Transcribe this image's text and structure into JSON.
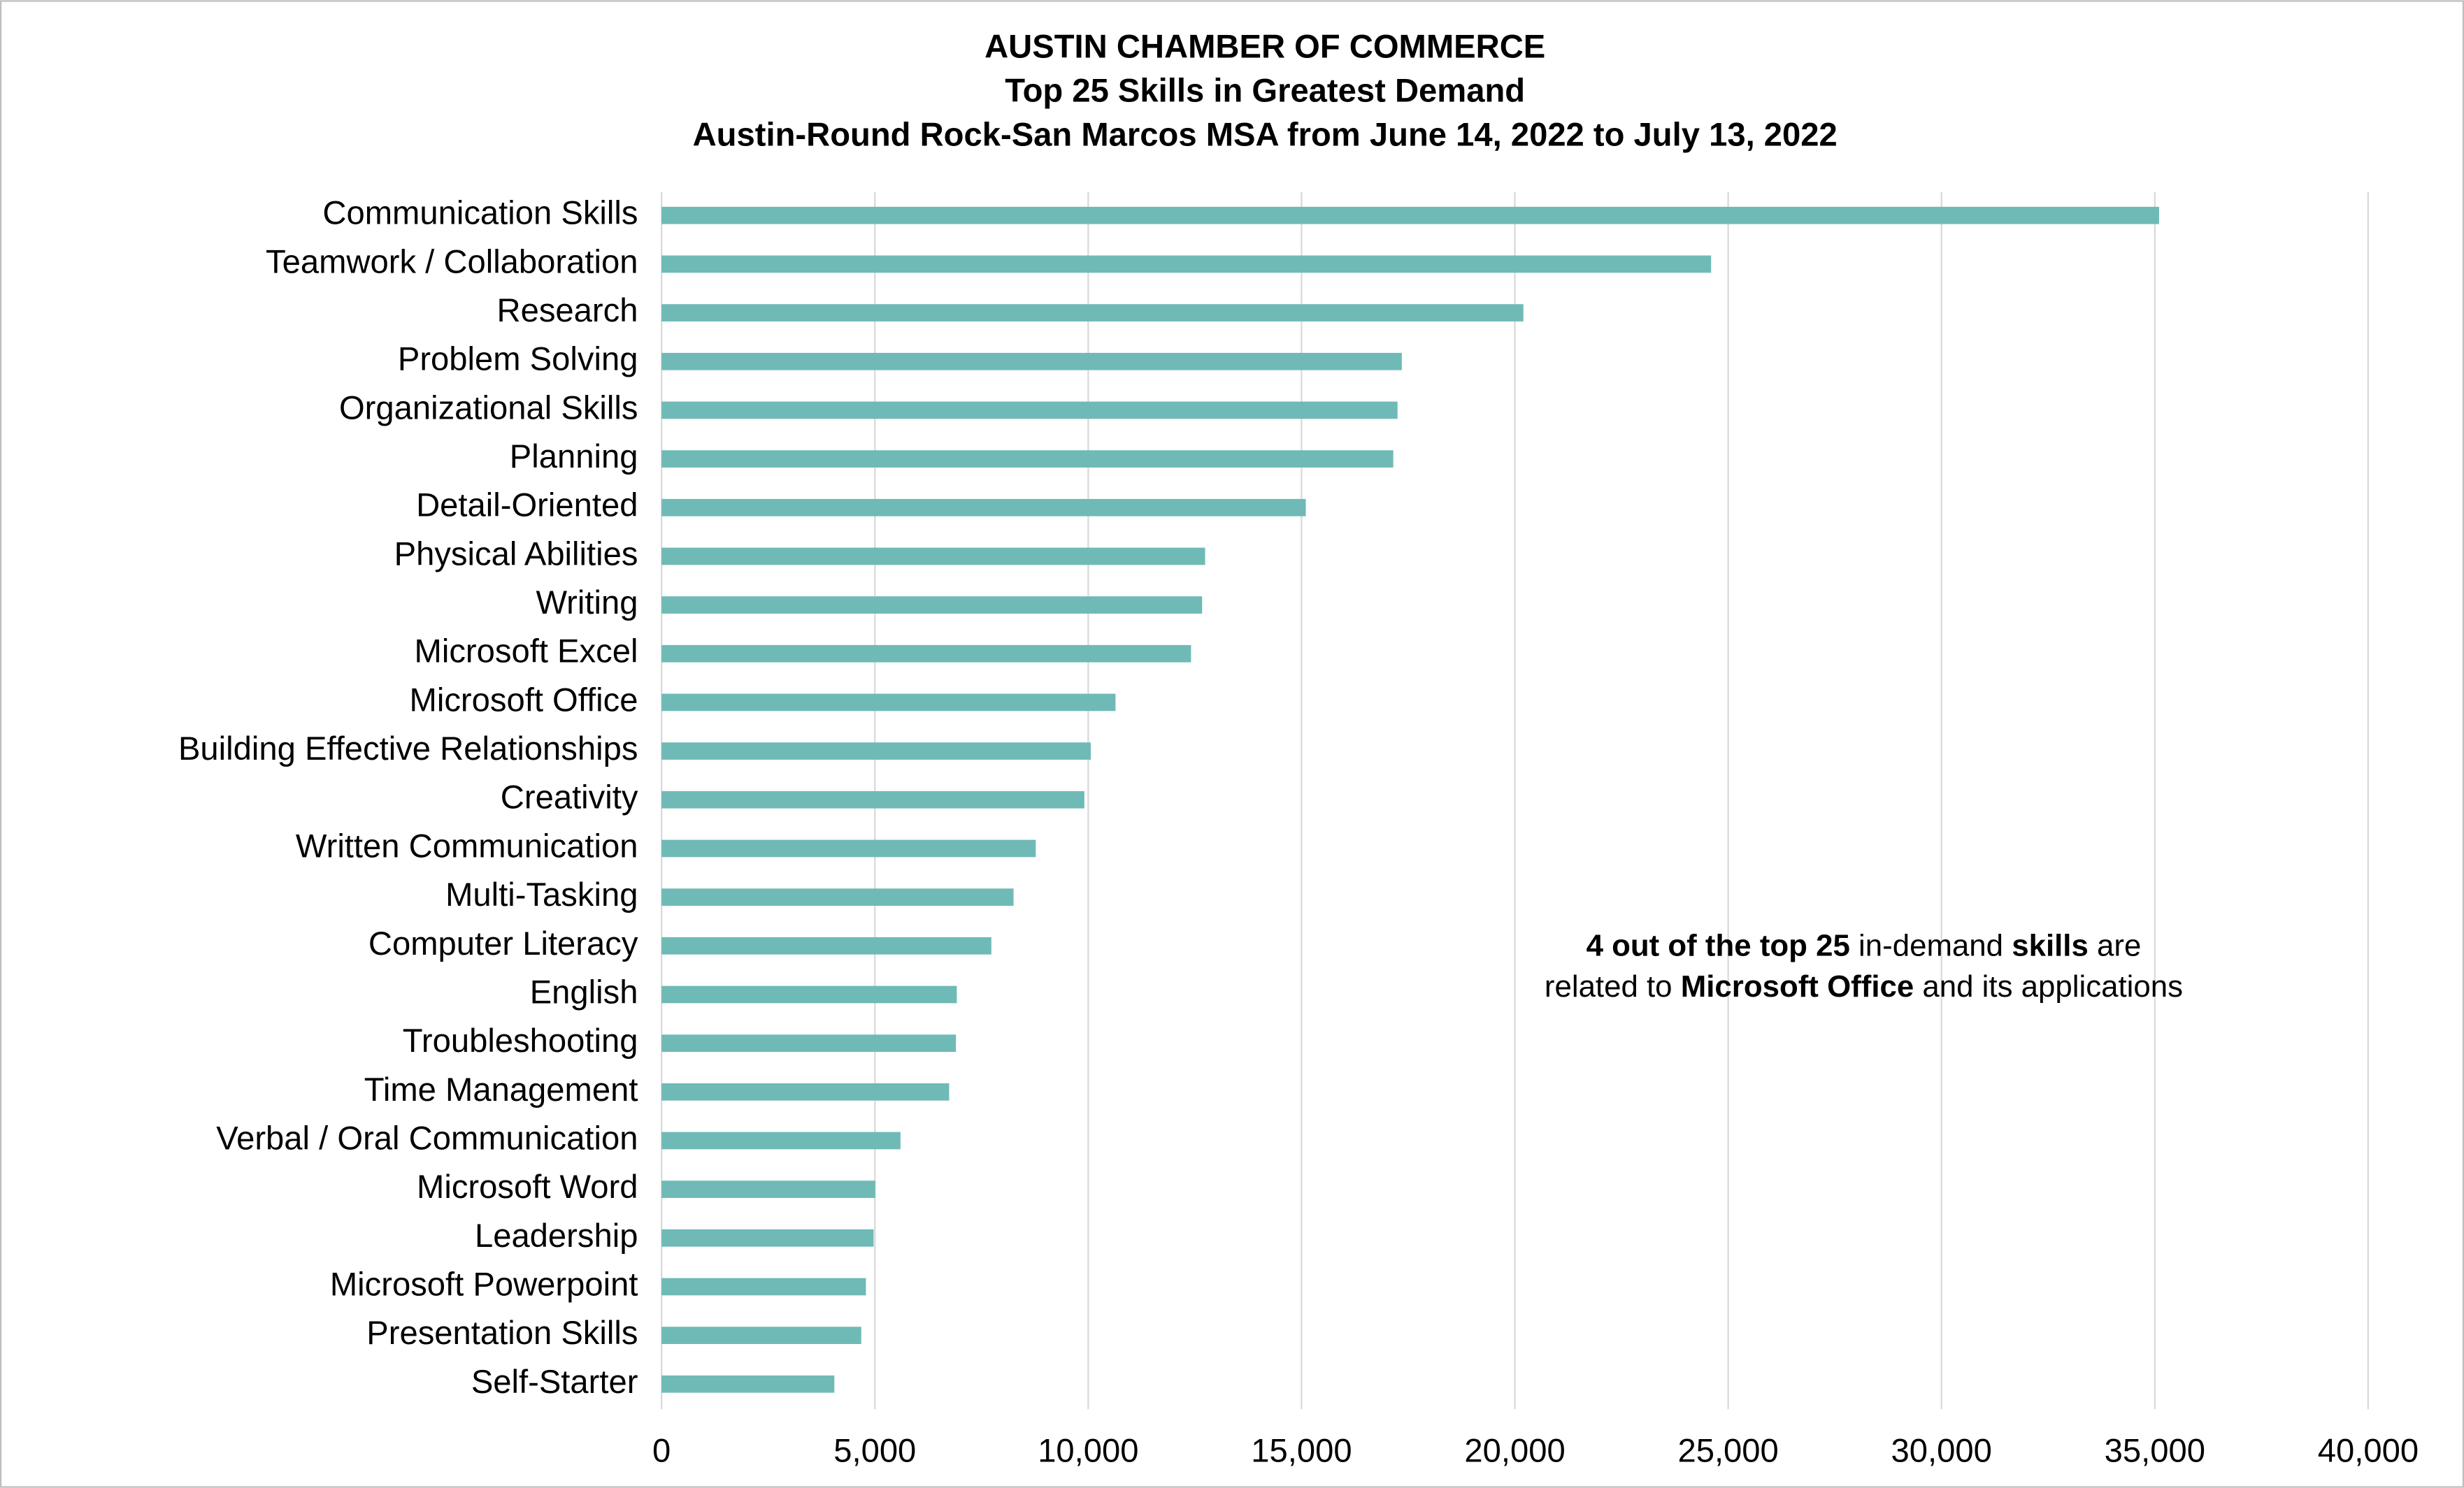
{
  "chart_data": {
    "type": "bar",
    "orientation": "horizontal",
    "title": "AUSTIN CHAMBER OF COMMERCE",
    "subtitle": [
      "Top 25 Skills in Greatest Demand",
      "Austin-Round Rock-San Marcos MSA from June 14, 2022 to July 13, 2022"
    ],
    "categories": [
      "Communication Skills",
      "Teamwork / Collaboration",
      "Research",
      "Problem Solving",
      "Organizational Skills",
      "Planning",
      "Detail-Oriented",
      "Physical Abilities",
      "Writing",
      "Microsoft Excel",
      "Microsoft Office",
      "Building Effective Relationships",
      "Creativity",
      "Written Communication",
      "Multi-Tasking",
      "Computer Literacy",
      "English",
      "Troubleshooting",
      "Time Management",
      "Verbal / Oral Communication",
      "Microsoft Word",
      "Leadership",
      "Microsoft Powerpoint",
      "Presentation Skills",
      "Self-Starter"
    ],
    "values": [
      35100,
      24600,
      20200,
      17350,
      17250,
      17150,
      15100,
      12740,
      12670,
      12410,
      10640,
      10060,
      9910,
      8770,
      8250,
      7730,
      6920,
      6900,
      6740,
      5600,
      5010,
      4970,
      4790,
      4680,
      4050
    ],
    "color": "#6fbab6",
    "xlim": [
      0,
      40000
    ],
    "xticks": [
      0,
      {
        "value": 5000,
        "label": "5,000"
      },
      {
        "value": 10000,
        "label": "10,000"
      },
      {
        "value": 15000,
        "label": "15,000"
      },
      {
        "value": 20000,
        "label": "20,000"
      },
      {
        "value": 25000,
        "label": "25,000"
      },
      {
        "value": 30000,
        "label": "30,000"
      },
      {
        "value": 35000,
        "label": "35,000"
      },
      {
        "value": 40000,
        "label": "40,000"
      }
    ],
    "grid": true,
    "annotation": [
      [
        {
          "text": "4 out of the top 25",
          "bold": true
        },
        {
          "text": " in-demand ",
          "bold": false
        },
        {
          "text": "skills",
          "bold": true
        },
        {
          "text": " are",
          "bold": false
        }
      ],
      [
        {
          "text": "related to ",
          "bold": false
        },
        {
          "text": "Microsoft Office",
          "bold": true
        },
        {
          "text": " and its applications",
          "bold": false
        }
      ]
    ]
  }
}
